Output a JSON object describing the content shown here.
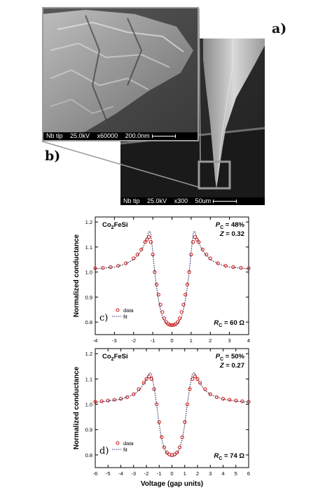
{
  "panel_labels": {
    "a": "a)",
    "b": "b)",
    "c": "c)",
    "d": "d)"
  },
  "sem_main": {
    "sample": "Nb tip",
    "voltage": "25.0kV",
    "mag": "x300",
    "scale": "50um"
  },
  "sem_inset": {
    "sample": "Nb tip",
    "voltage": "25.0kV",
    "mag": "x60000",
    "scale": "200.0nm"
  },
  "colors": {
    "data": "#cc1111",
    "fit": "#1a2a55",
    "inset_border": "#9a9a9a"
  },
  "chart_data": [
    {
      "type": "scatter",
      "panel": "c)",
      "material": "Co2FeSi",
      "ylabel": "Normalized conductance",
      "xlim": [
        -4,
        4
      ],
      "ylim": [
        0.75,
        1.22
      ],
      "xticks": [
        -4,
        -3,
        -2,
        -1,
        0,
        1,
        2,
        3,
        4
      ],
      "yticks": [
        0.8,
        0.9,
        1.0,
        1.1,
        1.2
      ],
      "annotations": {
        "pc": "P_C = 48%",
        "z": "Z = 0.32",
        "rc": "R_C = 60 Ω"
      },
      "legend": [
        "data",
        "fit"
      ],
      "series": [
        {
          "name": "data",
          "style": "markers",
          "x": [
            -4.0,
            -3.6,
            -3.2,
            -2.8,
            -2.4,
            -2.0,
            -1.8,
            -1.6,
            -1.4,
            -1.3,
            -1.2,
            -1.1,
            -1.0,
            -0.9,
            -0.8,
            -0.7,
            -0.6,
            -0.5,
            -0.4,
            -0.3,
            -0.2,
            -0.1,
            0.0,
            0.1,
            0.2,
            0.3,
            0.4,
            0.5,
            0.6,
            0.7,
            0.8,
            0.9,
            1.0,
            1.1,
            1.2,
            1.3,
            1.4,
            1.6,
            1.8,
            2.0,
            2.4,
            2.8,
            3.2,
            3.6,
            4.0
          ],
          "y": [
            1.015,
            1.017,
            1.02,
            1.025,
            1.035,
            1.055,
            1.07,
            1.09,
            1.12,
            1.13,
            1.14,
            1.12,
            1.07,
            1.0,
            0.95,
            0.91,
            0.87,
            0.84,
            0.815,
            0.8,
            0.792,
            0.789,
            0.788,
            0.789,
            0.792,
            0.8,
            0.815,
            0.84,
            0.87,
            0.91,
            0.95,
            1.0,
            1.07,
            1.12,
            1.14,
            1.13,
            1.12,
            1.09,
            1.07,
            1.055,
            1.035,
            1.025,
            1.02,
            1.017,
            1.015
          ]
        },
        {
          "name": "fit",
          "style": "dotted",
          "x": [
            -4.0,
            -3.5,
            -3.0,
            -2.5,
            -2.0,
            -1.7,
            -1.5,
            -1.3,
            -1.2,
            -1.15,
            -1.1,
            -1.0,
            -0.9,
            -0.8,
            -0.7,
            -0.6,
            -0.5,
            -0.4,
            -0.3,
            -0.2,
            -0.1,
            0.0,
            0.1,
            0.2,
            0.3,
            0.4,
            0.5,
            0.6,
            0.7,
            0.8,
            0.9,
            1.0,
            1.1,
            1.15,
            1.2,
            1.3,
            1.5,
            1.7,
            2.0,
            2.5,
            3.0,
            3.5,
            4.0
          ],
          "y": [
            1.013,
            1.016,
            1.02,
            1.03,
            1.05,
            1.075,
            1.1,
            1.14,
            1.16,
            1.163,
            1.15,
            1.08,
            1.0,
            0.94,
            0.89,
            0.85,
            0.82,
            0.805,
            0.795,
            0.789,
            0.786,
            0.785,
            0.786,
            0.789,
            0.795,
            0.805,
            0.82,
            0.85,
            0.89,
            0.94,
            1.0,
            1.08,
            1.15,
            1.163,
            1.16,
            1.14,
            1.1,
            1.075,
            1.05,
            1.03,
            1.02,
            1.016,
            1.013
          ]
        }
      ]
    },
    {
      "type": "scatter",
      "panel": "d)",
      "material": "Co2FeSi",
      "ylabel": "Normalized conductance",
      "xlabel": "Voltage (gap units)",
      "xlim": [
        -6,
        6
      ],
      "ylim": [
        0.75,
        1.22
      ],
      "xticks": [
        -6,
        -5,
        -4,
        -3,
        -2,
        -1,
        0,
        1,
        2,
        3,
        4,
        5,
        6
      ],
      "yticks": [
        0.8,
        0.9,
        1.0,
        1.1,
        1.2
      ],
      "annotations": {
        "pc": "P_C = 50%",
        "z": "Z = 0.27",
        "rc": "R_C = 74 Ω"
      },
      "legend": [
        "data",
        "fit"
      ],
      "series": [
        {
          "name": "data",
          "style": "markers",
          "x": [
            -6.0,
            -5.5,
            -5.0,
            -4.5,
            -4.0,
            -3.5,
            -3.0,
            -2.6,
            -2.2,
            -2.0,
            -1.8,
            -1.6,
            -1.4,
            -1.2,
            -1.0,
            -0.8,
            -0.6,
            -0.4,
            -0.2,
            0.0,
            0.2,
            0.4,
            0.6,
            0.8,
            1.0,
            1.2,
            1.4,
            1.6,
            1.8,
            2.0,
            2.2,
            2.6,
            3.0,
            3.5,
            4.0,
            4.5,
            5.0,
            5.5,
            6.0
          ],
          "y": [
            1.01,
            1.012,
            1.015,
            1.018,
            1.022,
            1.028,
            1.04,
            1.06,
            1.085,
            1.1,
            1.11,
            1.1,
            1.06,
            1.0,
            0.93,
            0.87,
            0.83,
            0.81,
            0.802,
            0.8,
            0.802,
            0.81,
            0.83,
            0.87,
            0.93,
            1.0,
            1.06,
            1.1,
            1.11,
            1.1,
            1.085,
            1.06,
            1.04,
            1.028,
            1.022,
            1.018,
            1.015,
            1.012,
            1.01
          ]
        },
        {
          "name": "fit",
          "style": "dotted",
          "x": [
            -6.0,
            -5.0,
            -4.0,
            -3.0,
            -2.5,
            -2.1,
            -1.9,
            -1.75,
            -1.6,
            -1.4,
            -1.2,
            -1.0,
            -0.8,
            -0.6,
            -0.4,
            -0.2,
            0.0,
            0.2,
            0.4,
            0.6,
            0.8,
            1.0,
            1.2,
            1.4,
            1.6,
            1.75,
            1.9,
            2.1,
            2.5,
            3.0,
            4.0,
            5.0,
            6.0
          ],
          "y": [
            1.008,
            1.013,
            1.02,
            1.038,
            1.06,
            1.09,
            1.11,
            1.125,
            1.12,
            1.07,
            1.0,
            0.92,
            0.86,
            0.825,
            0.805,
            0.796,
            0.793,
            0.796,
            0.805,
            0.825,
            0.86,
            0.92,
            1.0,
            1.07,
            1.12,
            1.125,
            1.11,
            1.09,
            1.06,
            1.038,
            1.02,
            1.013,
            1.008
          ]
        }
      ]
    }
  ]
}
